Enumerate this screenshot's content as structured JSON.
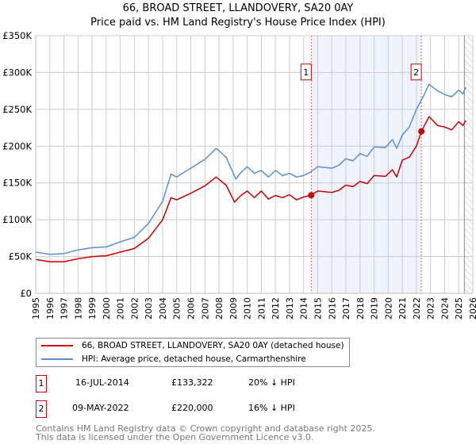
{
  "title_line1": "66, BROAD STREET, LLANDOVERY, SA20 0AY",
  "title_line2": "Price paid vs. HM Land Registry's House Price Index (HPI)",
  "chart_data": {
    "type": "line",
    "title": "66, BROAD STREET, LLANDOVERY, SA20 0AY — Price paid vs. HM Land Registry's House Price Index (HPI)",
    "xlim": [
      1995,
      2026
    ],
    "ylim": [
      0,
      350000
    ],
    "y_ticks": [
      0,
      50000,
      100000,
      150000,
      200000,
      250000,
      300000,
      350000
    ],
    "y_tick_labels": [
      "£0",
      "£50K",
      "£100K",
      "£150K",
      "£200K",
      "£250K",
      "£300K",
      "£350K"
    ],
    "x_ticks": [
      1995,
      1996,
      1997,
      1998,
      1999,
      2000,
      2001,
      2002,
      2003,
      2004,
      2005,
      2006,
      2007,
      2008,
      2009,
      2010,
      2011,
      2012,
      2013,
      2014,
      2015,
      2016,
      2017,
      2018,
      2019,
      2020,
      2021,
      2022,
      2023,
      2024,
      2025,
      2026
    ],
    "grid": true,
    "colors": {
      "property": "#cc0000",
      "hpi": "#5b8fd0",
      "shade": "#eef3fc",
      "marker_border": "#cc0000"
    },
    "shaded_range": [
      2014.54,
      2022.35
    ],
    "forecast_hatch_from": 2025.4,
    "series": [
      {
        "name": "66, BROAD STREET, LLANDOVERY, SA20 0AY (detached house)",
        "color": "#cc0000",
        "x": [
          1995,
          1996,
          1997,
          1998,
          1999,
          2000,
          2001,
          2002,
          2003,
          2004,
          2004.6,
          2005,
          2006,
          2007,
          2007.8,
          2008.5,
          2009.1,
          2009.5,
          2010,
          2010.5,
          2011,
          2011.5,
          2012,
          2012.5,
          2013,
          2013.5,
          2014,
          2014.54,
          2015,
          2016,
          2016.5,
          2017,
          2017.5,
          2018,
          2018.5,
          2019,
          2019.8,
          2020.3,
          2020.6,
          2021,
          2021.5,
          2022,
          2022.35,
          2022.9,
          2023.5,
          2024,
          2024.5,
          2025,
          2025.3,
          2025.5
        ],
        "y": [
          46000,
          43000,
          43000,
          47000,
          50000,
          51000,
          56000,
          61000,
          75000,
          100000,
          130000,
          127000,
          136000,
          146000,
          158000,
          147000,
          124000,
          132000,
          139000,
          130000,
          139000,
          128000,
          133000,
          130000,
          134000,
          127000,
          131000,
          133322,
          139000,
          137000,
          140000,
          147000,
          145000,
          152000,
          149000,
          160000,
          159000,
          168000,
          158000,
          181000,
          185000,
          200000,
          220000,
          240000,
          228000,
          226000,
          222000,
          233000,
          228000,
          235000
        ]
      },
      {
        "name": "HPI: Average price, detached house, Carmarthenshire",
        "color": "#5b8fd0",
        "x": [
          1995,
          1996,
          1997,
          1998,
          1999,
          2000,
          2001,
          2002,
          2003,
          2004,
          2004.6,
          2005,
          2006,
          2007,
          2007.8,
          2008.5,
          2009.2,
          2009.5,
          2010,
          2010.5,
          2011,
          2011.5,
          2012,
          2012.5,
          2013,
          2013.5,
          2014,
          2014.5,
          2015,
          2016,
          2016.5,
          2017,
          2017.5,
          2018,
          2018.5,
          2019,
          2019.8,
          2020.3,
          2020.6,
          2021,
          2021.5,
          2022,
          2022.5,
          2022.9,
          2023.5,
          2024,
          2024.5,
          2025,
          2025.3,
          2025.5
        ],
        "y": [
          56000,
          53000,
          54000,
          59000,
          62000,
          63000,
          70000,
          76000,
          95000,
          125000,
          162000,
          158000,
          170000,
          182000,
          197000,
          185000,
          155000,
          163000,
          172000,
          163000,
          167000,
          158000,
          167000,
          160000,
          163000,
          158000,
          160000,
          165000,
          172000,
          170000,
          174000,
          183000,
          180000,
          190000,
          186000,
          199000,
          198000,
          209000,
          197000,
          215000,
          226000,
          250000,
          268000,
          284000,
          275000,
          270000,
          267000,
          276000,
          271000,
          280000
        ]
      }
    ],
    "annotations": [
      {
        "label": "1",
        "x": 2014.54,
        "y": 133322
      },
      {
        "label": "2",
        "x": 2022.35,
        "y": 220000
      }
    ]
  },
  "legend": {
    "property": "66, BROAD STREET, LLANDOVERY, SA20 0AY (detached house)",
    "hpi": "HPI: Average price, detached house, Carmarthenshire"
  },
  "transactions": [
    {
      "num": "1",
      "date": "16-JUL-2014",
      "price": "£133,322",
      "hpi": "20% ↓ HPI"
    },
    {
      "num": "2",
      "date": "09-MAY-2022",
      "price": "£220,000",
      "hpi": "16% ↓ HPI"
    }
  ],
  "footer": {
    "line1": "Contains HM Land Registry data © Crown copyright and database right 2025.",
    "line2": "This data is licensed under the Open Government Licence v3.0."
  }
}
